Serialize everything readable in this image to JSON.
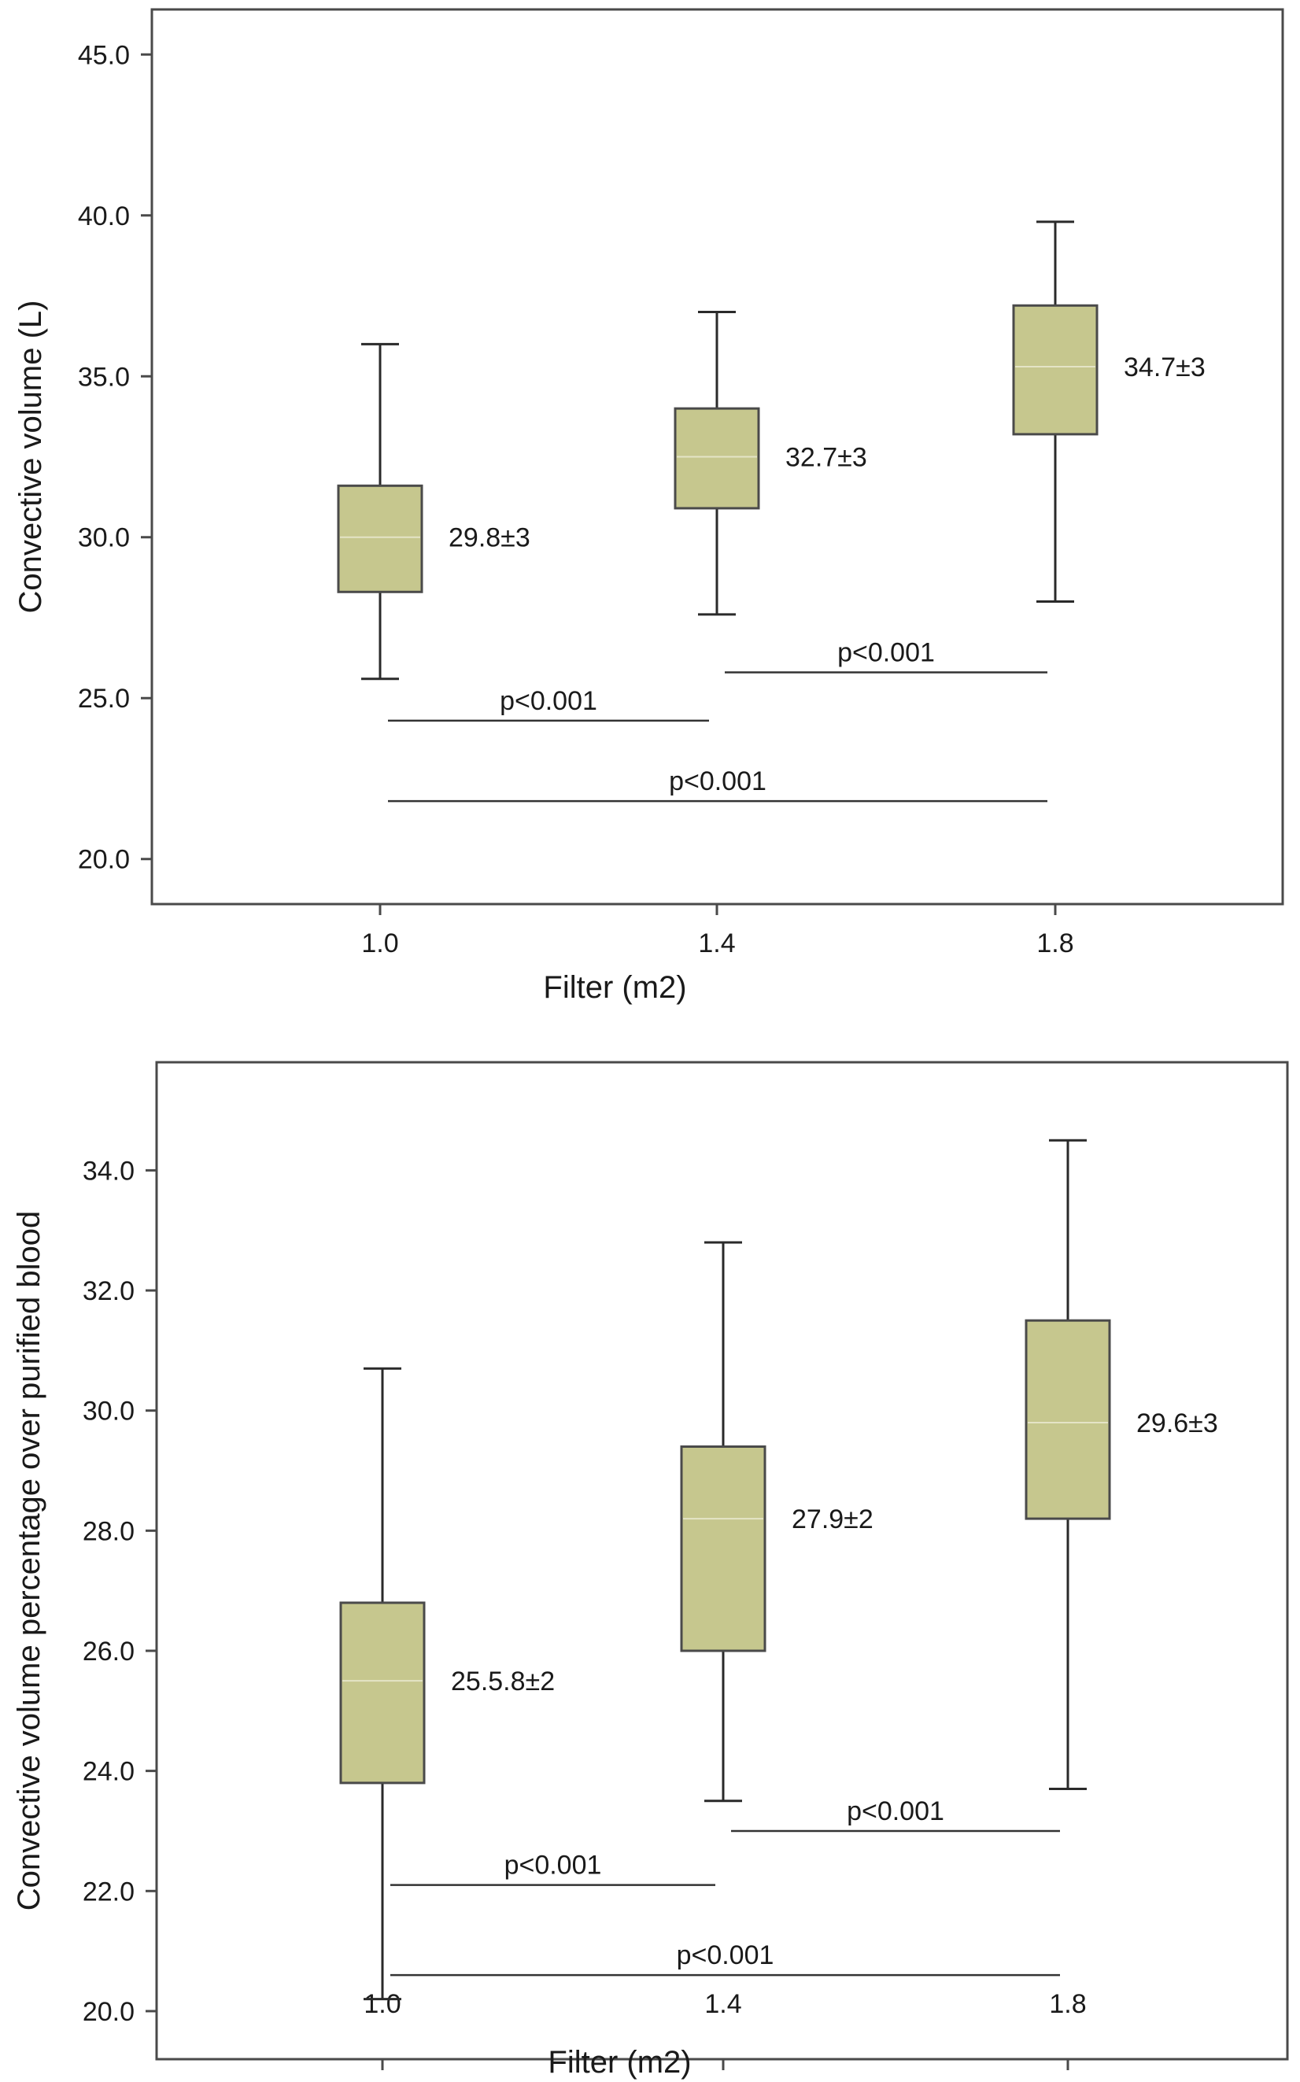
{
  "chart_data": [
    {
      "type": "box",
      "title": "",
      "xlabel": "Filter (m2)",
      "ylabel": "Convective volume (L)",
      "ylim": [
        18.6,
        46.4
      ],
      "yticks": [
        "20.0",
        "25.0",
        "30.0",
        "35.0",
        "40.0",
        "45.0"
      ],
      "yticks_values": [
        20,
        25,
        30,
        35,
        40,
        45
      ],
      "categories": [
        "1.0",
        "1.4",
        "1.8"
      ],
      "box_color": "#c6c78e",
      "boxes": [
        {
          "category": "1.0",
          "min": 25.6,
          "q1": 28.3,
          "median": 30.0,
          "q3": 31.6,
          "max": 36.0,
          "label": "29.8±3"
        },
        {
          "category": "1.4",
          "min": 27.6,
          "q1": 30.9,
          "median": 32.5,
          "q3": 34.0,
          "max": 37.0,
          "label": "32.7±3"
        },
        {
          "category": "1.8",
          "min": 28.0,
          "q1": 33.2,
          "median": 35.3,
          "q3": 37.2,
          "max": 39.8,
          "label": "34.7±3"
        }
      ],
      "significance": [
        {
          "from": "1.4",
          "to": "1.8",
          "y": 25.8,
          "label": "p<0.001"
        },
        {
          "from": "1.0",
          "to": "1.4",
          "y": 24.3,
          "label": "p<0.001"
        },
        {
          "from": "1.0",
          "to": "1.8",
          "y": 21.8,
          "label": "p<0.001"
        }
      ]
    },
    {
      "type": "box",
      "title": "",
      "xlabel": "Filter (m2)",
      "ylabel": "Convective volume percentage over purified blood",
      "ylim": [
        19.2,
        35.8
      ],
      "yticks": [
        "20.0",
        "22.0",
        "24.0",
        "26.0",
        "28.0",
        "30.0",
        "32.0",
        "34.0"
      ],
      "yticks_values": [
        20,
        22,
        24,
        26,
        28,
        30,
        32,
        34
      ],
      "categories": [
        "1.0",
        "1.4",
        "1.8"
      ],
      "box_color": "#c6c78e",
      "boxes": [
        {
          "category": "1.0",
          "min": 20.2,
          "q1": 23.8,
          "median": 25.5,
          "q3": 26.8,
          "max": 30.7,
          "label": "25.5.8±2"
        },
        {
          "category": "1.4",
          "min": 23.5,
          "q1": 26.0,
          "median": 28.2,
          "q3": 29.4,
          "max": 32.8,
          "label": "27.9±2"
        },
        {
          "category": "1.8",
          "min": 23.7,
          "q1": 28.2,
          "median": 29.8,
          "q3": 31.5,
          "max": 34.5,
          "label": "29.6±3"
        }
      ],
      "significance": [
        {
          "from": "1.4",
          "to": "1.8",
          "y": 23.0,
          "label": "p<0.001"
        },
        {
          "from": "1.0",
          "to": "1.4",
          "y": 22.1,
          "label": "p<0.001"
        },
        {
          "from": "1.0",
          "to": "1.8",
          "y": 20.6,
          "label": "p<0.001"
        }
      ]
    }
  ]
}
